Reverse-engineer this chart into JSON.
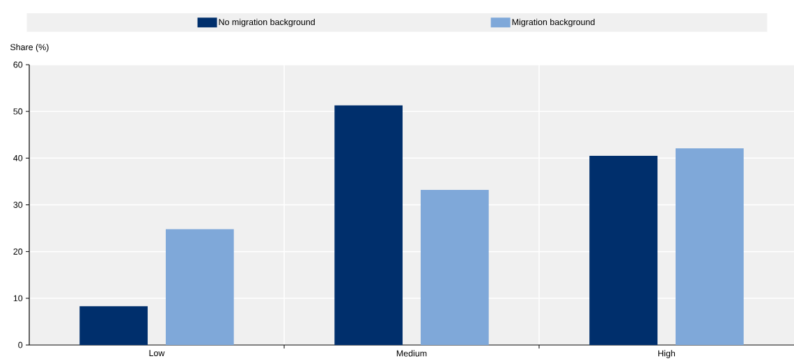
{
  "chart_data": {
    "type": "bar",
    "ylabel": "Share (%)",
    "categories": [
      "Low",
      "Medium",
      "High"
    ],
    "series": [
      {
        "name": "No migration background",
        "color": "#002f6c",
        "values": [
          8.3,
          51.3,
          40.5
        ]
      },
      {
        "name": "Migration background",
        "color": "#7fa8d9",
        "values": [
          24.8,
          33.2,
          42.1
        ]
      }
    ],
    "ylim": [
      0,
      60
    ],
    "yticks": [
      0,
      10,
      20,
      30,
      40,
      50,
      60
    ],
    "grid": true,
    "legend": "top"
  }
}
